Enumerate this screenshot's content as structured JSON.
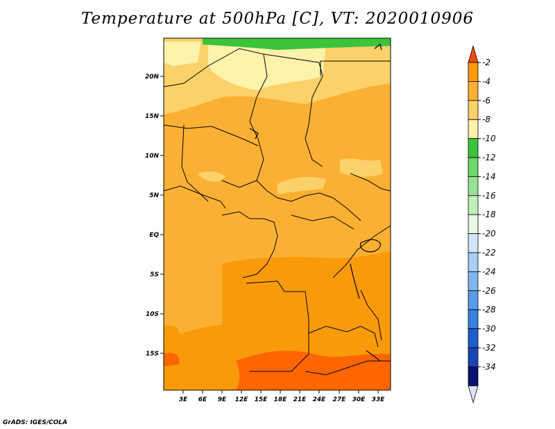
{
  "title": "Temperature at 500hPa [C], VT: 2020010906",
  "footer": "GrADS: IGES/COLA",
  "map": {
    "region": "Central Africa",
    "lat_ticks": [
      "20N",
      "15N",
      "10N",
      "5N",
      "EQ",
      "5S",
      "10S",
      "15S"
    ],
    "lon_ticks": [
      "3E",
      "6E",
      "9E",
      "12E",
      "15E",
      "18E",
      "21E",
      "24E",
      "27E",
      "30E",
      "33E"
    ],
    "field_colors": {
      "c2": "#ff6600",
      "c4": "#f89a0a",
      "c6": "#fbb033",
      "c8": "#fcd16a",
      "c10": "#fff2ab",
      "c12": "#3bc43b"
    }
  },
  "colorbar": {
    "labels": [
      "-2",
      "-4",
      "-6",
      "-8",
      "-10",
      "-12",
      "-14",
      "-16",
      "-18",
      "-20",
      "-22",
      "-24",
      "-26",
      "-28",
      "-30",
      "-32",
      "-34"
    ],
    "colors": [
      "#f04d00",
      "#f89a0a",
      "#fbb033",
      "#fcd16a",
      "#fff2ab",
      "#3bc43b",
      "#6ed56b",
      "#98e193",
      "#c1efbb",
      "#e8f8e6",
      "#cfe5f9",
      "#a7cef3",
      "#7fb5ee",
      "#5a9ae6",
      "#3a80dd",
      "#1f5fcc",
      "#1a46b3",
      "#0a1272",
      "#e0e0f8"
    ]
  }
}
